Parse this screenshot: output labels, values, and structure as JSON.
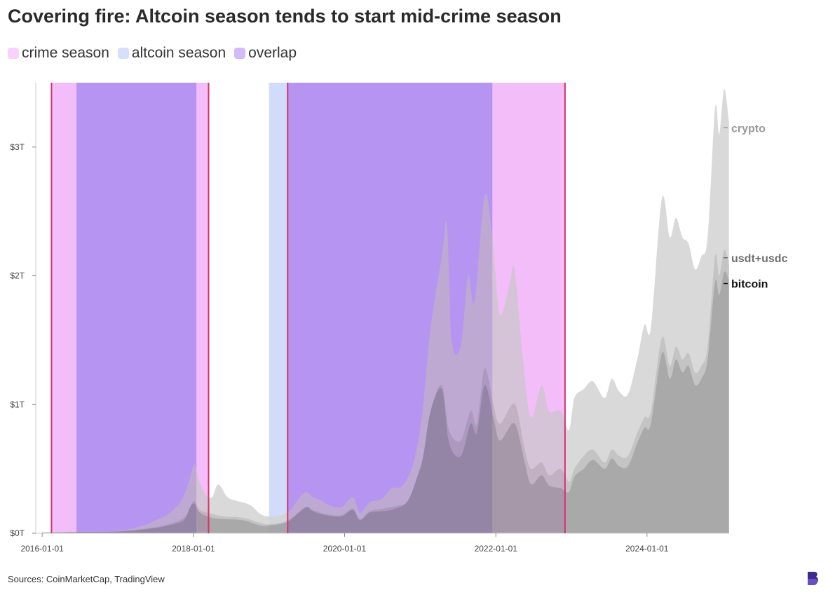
{
  "header": {
    "title": "Covering fire: Altcoin season tends to start mid-crime season"
  },
  "legend": [
    {
      "label": "crime season",
      "color": "#f7d2fb"
    },
    {
      "label": "altcoin season",
      "color": "#d6e0fb"
    },
    {
      "label": "overlap",
      "color": "#d0bdf7"
    }
  ],
  "footer": {
    "source": "Sources: CoinMarketCap, TradingView"
  },
  "colors": {
    "crime_line": "#d6336c",
    "crypto_fill": "#d9d9d9",
    "usdt_fill": "#c4c4c4",
    "bitcoin_fill": "#a9a9a9",
    "axis": "#cccccc",
    "brand": "#3d2b8f"
  },
  "chart_data": {
    "type": "area",
    "xlim": [
      "2015-12-01",
      "2025-02-01"
    ],
    "ylim": [
      0,
      3.5
    ],
    "x_ticks": [
      "2016-01-01",
      "2018-01-01",
      "2020-01-01",
      "2022-01-01",
      "2024-01-01"
    ],
    "y_ticks": [
      {
        "value": 0,
        "label": "$0T"
      },
      {
        "value": 1,
        "label": "$1T"
      },
      {
        "value": 2,
        "label": "$2T"
      },
      {
        "value": 3,
        "label": "$3T"
      }
    ],
    "crime_seasons": [
      {
        "start": "2016-02-15",
        "end": "2018-03-15"
      },
      {
        "start": "2019-04-01",
        "end": "2022-12-01"
      }
    ],
    "altcoin_seasons": [
      {
        "start": "2016-06-15",
        "end": "2018-01-15"
      },
      {
        "start": "2019-01-01",
        "end": "2021-12-15"
      }
    ],
    "series": [
      {
        "name": "crypto",
        "color": "#9a9a9a",
        "points": [
          [
            "2016-01-01",
            0.007
          ],
          [
            "2016-06-01",
            0.012
          ],
          [
            "2017-01-01",
            0.018
          ],
          [
            "2017-05-01",
            0.06
          ],
          [
            "2017-07-01",
            0.1
          ],
          [
            "2017-09-01",
            0.15
          ],
          [
            "2017-11-01",
            0.25
          ],
          [
            "2017-12-10",
            0.4
          ],
          [
            "2018-01-05",
            0.54
          ],
          [
            "2018-01-25",
            0.42
          ],
          [
            "2018-03-01",
            0.3
          ],
          [
            "2018-04-01",
            0.28
          ],
          [
            "2018-05-01",
            0.38
          ],
          [
            "2018-06-15",
            0.28
          ],
          [
            "2018-08-01",
            0.25
          ],
          [
            "2018-10-01",
            0.22
          ],
          [
            "2018-11-20",
            0.15
          ],
          [
            "2019-01-01",
            0.13
          ],
          [
            "2019-03-01",
            0.14
          ],
          [
            "2019-04-15",
            0.18
          ],
          [
            "2019-05-20",
            0.26
          ],
          [
            "2019-06-26",
            0.32
          ],
          [
            "2019-08-01",
            0.28
          ],
          [
            "2019-09-15",
            0.25
          ],
          [
            "2019-10-15",
            0.22
          ],
          [
            "2019-12-15",
            0.2
          ],
          [
            "2020-02-10",
            0.28
          ],
          [
            "2020-03-15",
            0.16
          ],
          [
            "2020-05-01",
            0.24
          ],
          [
            "2020-07-01",
            0.27
          ],
          [
            "2020-08-15",
            0.35
          ],
          [
            "2020-10-01",
            0.36
          ],
          [
            "2020-11-15",
            0.48
          ],
          [
            "2020-12-20",
            0.7
          ],
          [
            "2021-01-15",
            1.0
          ],
          [
            "2021-02-20",
            1.6
          ],
          [
            "2021-04-15",
            2.15
          ],
          [
            "2021-05-10",
            2.4
          ],
          [
            "2021-06-01",
            1.5
          ],
          [
            "2021-07-15",
            1.45
          ],
          [
            "2021-08-20",
            2.0
          ],
          [
            "2021-09-20",
            1.8
          ],
          [
            "2021-11-08",
            2.62
          ],
          [
            "2021-12-15",
            2.3
          ],
          [
            "2022-01-20",
            1.7
          ],
          [
            "2022-03-10",
            1.95
          ],
          [
            "2022-04-01",
            2.05
          ],
          [
            "2022-05-15",
            1.3
          ],
          [
            "2022-06-20",
            0.9
          ],
          [
            "2022-08-10",
            1.15
          ],
          [
            "2022-09-15",
            0.95
          ],
          [
            "2022-11-10",
            0.95
          ],
          [
            "2022-12-20",
            0.8
          ],
          [
            "2023-01-15",
            1.05
          ],
          [
            "2023-03-01",
            1.12
          ],
          [
            "2023-04-15",
            1.18
          ],
          [
            "2023-06-10",
            1.05
          ],
          [
            "2023-07-15",
            1.2
          ],
          [
            "2023-08-20",
            1.1
          ],
          [
            "2023-10-01",
            1.08
          ],
          [
            "2023-11-15",
            1.35
          ],
          [
            "2023-12-20",
            1.62
          ],
          [
            "2024-01-20",
            1.6
          ],
          [
            "2024-03-13",
            2.6
          ],
          [
            "2024-04-20",
            2.3
          ],
          [
            "2024-05-20",
            2.45
          ],
          [
            "2024-06-20",
            2.3
          ],
          [
            "2024-07-20",
            2.25
          ],
          [
            "2024-08-20",
            2.05
          ],
          [
            "2024-09-20",
            2.15
          ],
          [
            "2024-10-20",
            2.3
          ],
          [
            "2024-11-25",
            3.3
          ],
          [
            "2024-12-15",
            3.1
          ],
          [
            "2025-01-08",
            3.45
          ],
          [
            "2025-01-31",
            3.2
          ]
        ]
      },
      {
        "name": "usdt+usdc",
        "color": "#707070",
        "points": [
          [
            "2016-01-01",
            0.006
          ],
          [
            "2016-06-01",
            0.01
          ],
          [
            "2017-01-01",
            0.015
          ],
          [
            "2017-06-01",
            0.04
          ],
          [
            "2017-09-01",
            0.07
          ],
          [
            "2017-11-15",
            0.12
          ],
          [
            "2017-12-15",
            0.2
          ],
          [
            "2018-01-05",
            0.25
          ],
          [
            "2018-02-01",
            0.18
          ],
          [
            "2018-04-01",
            0.15
          ],
          [
            "2018-06-01",
            0.13
          ],
          [
            "2018-09-01",
            0.12
          ],
          [
            "2018-11-20",
            0.08
          ],
          [
            "2019-01-01",
            0.07
          ],
          [
            "2019-04-01",
            0.1
          ],
          [
            "2019-06-26",
            0.2
          ],
          [
            "2019-08-01",
            0.18
          ],
          [
            "2019-10-01",
            0.15
          ],
          [
            "2019-12-15",
            0.14
          ],
          [
            "2020-02-10",
            0.19
          ],
          [
            "2020-03-15",
            0.11
          ],
          [
            "2020-05-01",
            0.17
          ],
          [
            "2020-07-01",
            0.19
          ],
          [
            "2020-09-01",
            0.21
          ],
          [
            "2020-11-01",
            0.25
          ],
          [
            "2020-12-20",
            0.45
          ],
          [
            "2021-01-15",
            0.6
          ],
          [
            "2021-02-20",
            0.95
          ],
          [
            "2021-04-15",
            1.15
          ],
          [
            "2021-05-20",
            0.8
          ],
          [
            "2021-07-15",
            0.72
          ],
          [
            "2021-09-01",
            0.95
          ],
          [
            "2021-10-01",
            0.85
          ],
          [
            "2021-11-08",
            1.28
          ],
          [
            "2021-12-20",
            1.0
          ],
          [
            "2022-01-20",
            0.85
          ],
          [
            "2022-03-20",
            1.0
          ],
          [
            "2022-04-15",
            0.95
          ],
          [
            "2022-05-20",
            0.65
          ],
          [
            "2022-06-20",
            0.5
          ],
          [
            "2022-08-10",
            0.55
          ],
          [
            "2022-09-15",
            0.45
          ],
          [
            "2022-11-10",
            0.5
          ],
          [
            "2022-12-20",
            0.4
          ],
          [
            "2023-01-15",
            0.5
          ],
          [
            "2023-03-01",
            0.6
          ],
          [
            "2023-04-15",
            0.65
          ],
          [
            "2023-06-10",
            0.55
          ],
          [
            "2023-07-15",
            0.65
          ],
          [
            "2023-08-20",
            0.6
          ],
          [
            "2023-10-01",
            0.6
          ],
          [
            "2023-11-15",
            0.78
          ],
          [
            "2023-12-20",
            0.9
          ],
          [
            "2024-01-20",
            0.95
          ],
          [
            "2024-03-13",
            1.52
          ],
          [
            "2024-04-20",
            1.3
          ],
          [
            "2024-05-20",
            1.45
          ],
          [
            "2024-06-20",
            1.35
          ],
          [
            "2024-07-20",
            1.4
          ],
          [
            "2024-08-20",
            1.25
          ],
          [
            "2024-09-20",
            1.3
          ],
          [
            "2024-10-20",
            1.45
          ],
          [
            "2024-11-25",
            2.15
          ],
          [
            "2024-12-15",
            2.0
          ],
          [
            "2025-01-08",
            2.2
          ],
          [
            "2025-01-31",
            2.1
          ]
        ]
      },
      {
        "name": "bitcoin",
        "color": "#111111",
        "points": [
          [
            "2016-01-01",
            0.005
          ],
          [
            "2016-06-01",
            0.009
          ],
          [
            "2017-01-01",
            0.013
          ],
          [
            "2017-06-01",
            0.035
          ],
          [
            "2017-09-01",
            0.06
          ],
          [
            "2017-11-15",
            0.1
          ],
          [
            "2017-12-15",
            0.2
          ],
          [
            "2018-01-05",
            0.23
          ],
          [
            "2018-02-01",
            0.16
          ],
          [
            "2018-04-01",
            0.12
          ],
          [
            "2018-06-01",
            0.11
          ],
          [
            "2018-09-01",
            0.1
          ],
          [
            "2018-11-20",
            0.06
          ],
          [
            "2019-01-01",
            0.06
          ],
          [
            "2019-04-01",
            0.09
          ],
          [
            "2019-06-26",
            0.2
          ],
          [
            "2019-08-01",
            0.17
          ],
          [
            "2019-10-01",
            0.14
          ],
          [
            "2019-12-15",
            0.13
          ],
          [
            "2020-02-10",
            0.18
          ],
          [
            "2020-03-15",
            0.1
          ],
          [
            "2020-05-01",
            0.16
          ],
          [
            "2020-07-01",
            0.17
          ],
          [
            "2020-09-01",
            0.19
          ],
          [
            "2020-11-01",
            0.25
          ],
          [
            "2020-12-20",
            0.45
          ],
          [
            "2021-01-15",
            0.6
          ],
          [
            "2021-02-20",
            0.95
          ],
          [
            "2021-04-15",
            1.12
          ],
          [
            "2021-05-20",
            0.7
          ],
          [
            "2021-07-15",
            0.6
          ],
          [
            "2021-09-01",
            0.85
          ],
          [
            "2021-10-01",
            0.78
          ],
          [
            "2021-11-08",
            1.15
          ],
          [
            "2021-12-20",
            0.9
          ],
          [
            "2022-01-20",
            0.72
          ],
          [
            "2022-03-20",
            0.85
          ],
          [
            "2022-04-15",
            0.8
          ],
          [
            "2022-05-20",
            0.55
          ],
          [
            "2022-06-20",
            0.38
          ],
          [
            "2022-08-10",
            0.45
          ],
          [
            "2022-09-15",
            0.37
          ],
          [
            "2022-11-10",
            0.35
          ],
          [
            "2022-12-20",
            0.32
          ],
          [
            "2023-01-15",
            0.44
          ],
          [
            "2023-03-01",
            0.5
          ],
          [
            "2023-04-15",
            0.57
          ],
          [
            "2023-06-10",
            0.5
          ],
          [
            "2023-07-15",
            0.58
          ],
          [
            "2023-08-20",
            0.52
          ],
          [
            "2023-10-01",
            0.52
          ],
          [
            "2023-11-15",
            0.7
          ],
          [
            "2023-12-20",
            0.82
          ],
          [
            "2024-01-20",
            0.85
          ],
          [
            "2024-03-13",
            1.4
          ],
          [
            "2024-04-20",
            1.2
          ],
          [
            "2024-05-20",
            1.35
          ],
          [
            "2024-06-20",
            1.25
          ],
          [
            "2024-07-20",
            1.3
          ],
          [
            "2024-08-20",
            1.15
          ],
          [
            "2024-09-20",
            1.2
          ],
          [
            "2024-10-20",
            1.35
          ],
          [
            "2024-11-25",
            1.95
          ],
          [
            "2024-12-15",
            1.85
          ],
          [
            "2025-01-08",
            2.03
          ],
          [
            "2025-01-31",
            1.97
          ]
        ]
      }
    ],
    "end_labels": [
      {
        "text": "crypto",
        "value": 3.15,
        "color": "#9a9a9a"
      },
      {
        "text": "usdt+usdc",
        "value": 2.14,
        "color": "#707070"
      },
      {
        "text": "bitcoin",
        "value": 1.94,
        "color": "#111111"
      }
    ]
  }
}
